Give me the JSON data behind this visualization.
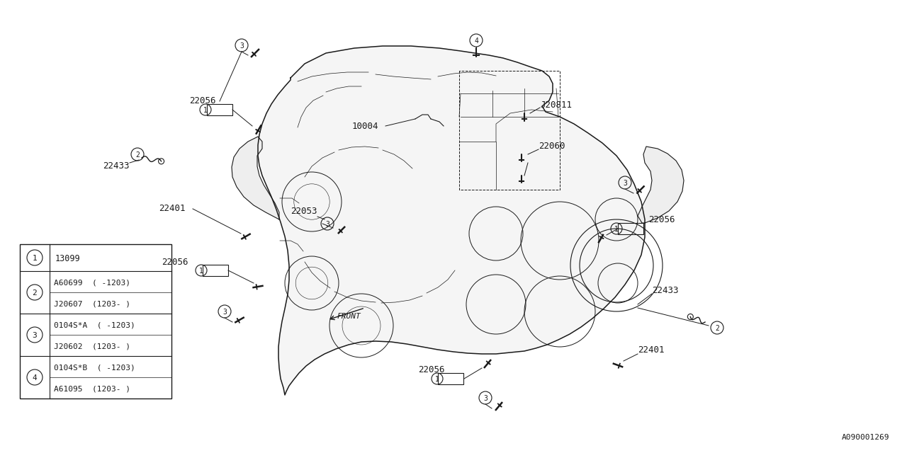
{
  "bg_color": "#ffffff",
  "line_color": "#1a1a1a",
  "diagram_code": "A090001269",
  "font_family": "monospace",
  "font_size_label": 9,
  "font_size_small": 8,
  "lw_main": 0.9,
  "lw_detail": 0.6,
  "lw_thin": 0.4,
  "legend": [
    {
      "num": 1,
      "lines": [
        "13099"
      ]
    },
    {
      "num": 2,
      "lines": [
        "A60699  ( -1203)",
        "J20607  (1203- )"
      ]
    },
    {
      "num": 3,
      "lines": [
        "0104S*A  ( -1203)",
        "J20602  (1203- )"
      ]
    },
    {
      "num": 4,
      "lines": [
        "0104S*B  ( -1203)",
        "A61095  (1203- )"
      ]
    }
  ]
}
